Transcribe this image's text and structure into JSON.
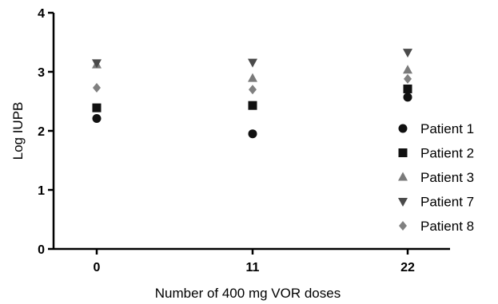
{
  "chart_data": {
    "type": "scatter",
    "xlabel": "Number of 400 mg VOR doses",
    "ylabel": "Log IUPB",
    "x_ticks": [
      "0",
      "11",
      "22"
    ],
    "y_ticks": [
      "0",
      "1",
      "2",
      "3",
      "4"
    ],
    "ylim": [
      0,
      4
    ],
    "legend_position": "right",
    "grid": false,
    "series": [
      {
        "name": "Patient 1",
        "marker": "circle",
        "color": "#111111",
        "points": [
          [
            0,
            2.21
          ],
          [
            11,
            1.95
          ],
          [
            22,
            2.57
          ]
        ]
      },
      {
        "name": "Patient 2",
        "marker": "square",
        "color": "#111111",
        "points": [
          [
            0,
            2.39
          ],
          [
            11,
            2.43
          ],
          [
            22,
            2.71
          ]
        ]
      },
      {
        "name": "Patient 3",
        "marker": "triangle-up",
        "color": "#7a7a7a",
        "points": [
          [
            0,
            3.12
          ],
          [
            11,
            2.89
          ],
          [
            22,
            3.03
          ]
        ]
      },
      {
        "name": "Patient 7",
        "marker": "triangle-down",
        "color": "#4a4a4a",
        "points": [
          [
            0,
            3.15
          ],
          [
            11,
            3.16
          ],
          [
            22,
            3.33
          ]
        ]
      },
      {
        "name": "Patient 8",
        "marker": "diamond",
        "color": "#808080",
        "points": [
          [
            0,
            2.73
          ],
          [
            11,
            2.7
          ],
          [
            22,
            2.88
          ]
        ]
      }
    ]
  }
}
